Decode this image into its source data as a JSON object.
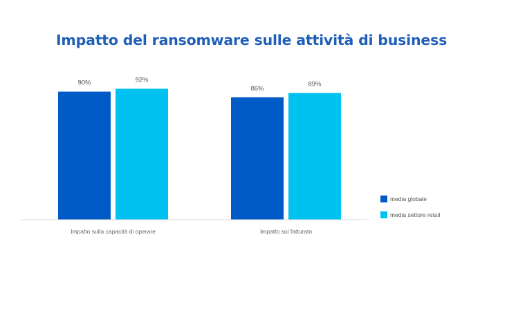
{
  "chart_data": {
    "type": "bar",
    "title": "Impatto del ransomware sulle attività di business",
    "categories": [
      "Impatto sulla capacità di operare",
      "Impatto sul fatturato"
    ],
    "series": [
      {
        "name": "media globale",
        "values": [
          90,
          86
        ],
        "labels": [
          "90%",
          "86%"
        ],
        "color": "#005bc6"
      },
      {
        "name": "media settore retail",
        "values": [
          92,
          89
        ],
        "labels": [
          "92%",
          "89%"
        ],
        "color": "#00c2f0"
      }
    ],
    "ylim": [
      0,
      100
    ],
    "grid": false,
    "legend": "right"
  }
}
